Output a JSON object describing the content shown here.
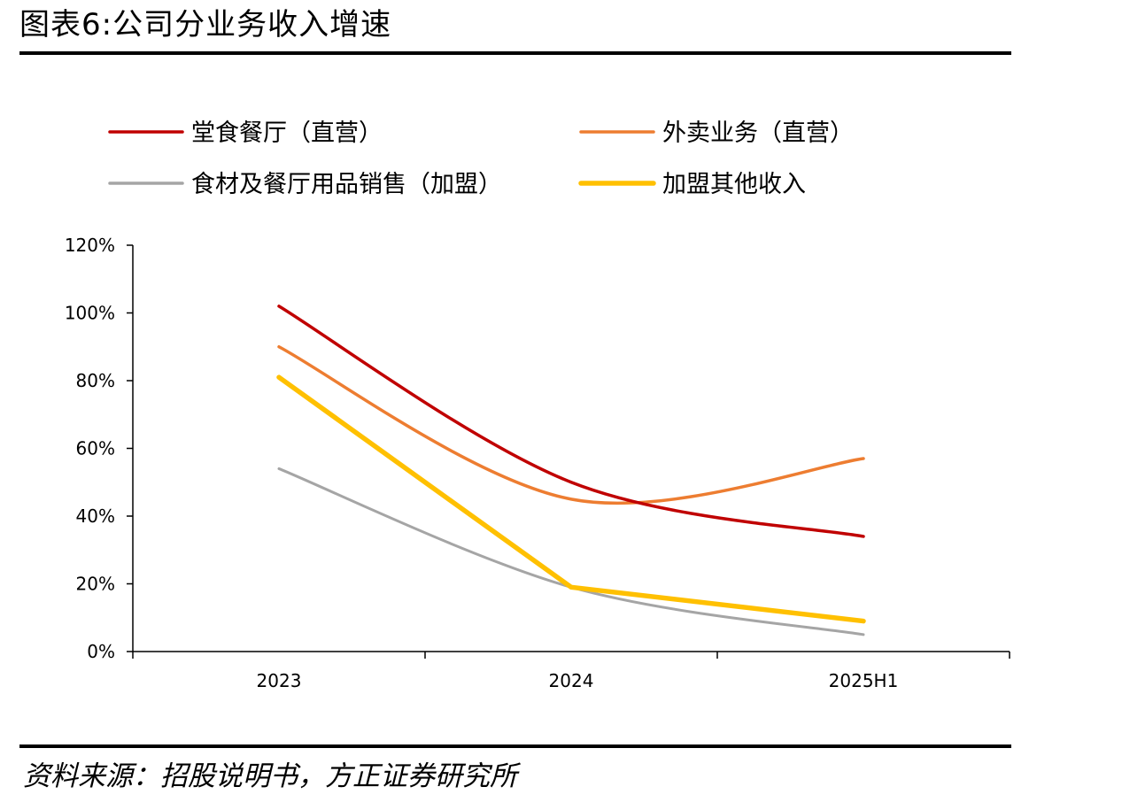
{
  "title": "图表6:公司分业务收入增速",
  "source": "资料来源：招股说明书，方正证券研究所",
  "chart_data": {
    "type": "line",
    "x": [
      "2023",
      "2024",
      "2025H1"
    ],
    "ylim": [
      0,
      120
    ],
    "yticks": [
      "0%",
      "20%",
      "40%",
      "60%",
      "80%",
      "100%",
      "120%"
    ],
    "legend_position": "top",
    "series": [
      {
        "name": "堂食餐厅（直营）",
        "color": "#C00000",
        "values": [
          102,
          50,
          34
        ]
      },
      {
        "name": "外卖业务（直营）",
        "color": "#ED7D31",
        "values": [
          90,
          45,
          57
        ]
      },
      {
        "name": "食材及餐厅用品销售（加盟）",
        "color": "#A5A5A5",
        "values": [
          54,
          19,
          5
        ]
      },
      {
        "name": "加盟其他收入",
        "color": "#FFC000",
        "values": [
          81,
          19,
          9
        ]
      }
    ]
  }
}
